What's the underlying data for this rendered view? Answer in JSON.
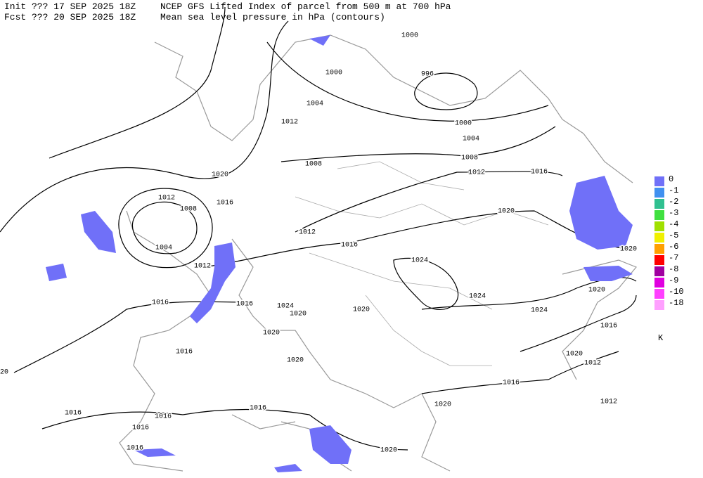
{
  "header": {
    "init": "Init  ??? 17 SEP 2025 18Z",
    "fcst": "Fcst ??? 20 SEP 2025 18Z",
    "title": "NCEP GFS Lifted Index of parcel from 500 m at 700 hPa",
    "subtitle": "Mean sea level pressure in hPa (contours)"
  },
  "contour_labels": [
    "1000",
    "996",
    "1000",
    "1004",
    "1008",
    "1012",
    "1016",
    "1020",
    "1020",
    "1020",
    "1024",
    "1024",
    "1024",
    "1016",
    "1020",
    "1012",
    "1016",
    "1012",
    "1020",
    "1020",
    "1016",
    "1020",
    "1020",
    "1020",
    "1020",
    "1024",
    "1016",
    "1016",
    "1012",
    "1016",
    "1020",
    "1008",
    "1012",
    "1004",
    "1000",
    "1012",
    "1008",
    "1004",
    "1012",
    "1016",
    "1016",
    "1016",
    "1016",
    "1016",
    "1016",
    "20"
  ],
  "legend": {
    "entries": [
      {
        "label": "0",
        "color": "#7070f8"
      },
      {
        "label": "-1",
        "color": "#4090f0"
      },
      {
        "label": "-2",
        "color": "#30c090"
      },
      {
        "label": "-3",
        "color": "#40e040"
      },
      {
        "label": "-4",
        "color": "#a0e000"
      },
      {
        "label": "-5",
        "color": "#f0f000"
      },
      {
        "label": "-6",
        "color": "#ffa000"
      },
      {
        "label": "-7",
        "color": "#ff0000"
      },
      {
        "label": "-8",
        "color": "#a000a0"
      },
      {
        "label": "-9",
        "color": "#e000e0"
      },
      {
        "label": "-10",
        "color": "#ff40ff"
      },
      {
        "label": "-18",
        "color": "#ffa0ff"
      }
    ],
    "unit": "K"
  }
}
